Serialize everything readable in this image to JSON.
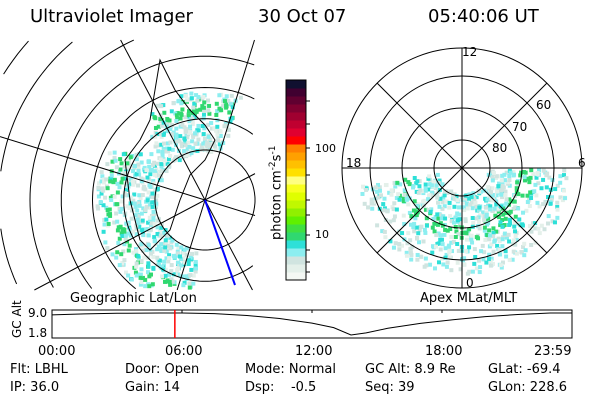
{
  "header": {
    "instrument": "Ultraviolet Imager",
    "date": "30 Oct 07",
    "time": "05:40:06 UT"
  },
  "left_panel": {
    "label": "Geographic Lat/Lon"
  },
  "right_panel": {
    "label": "Apex MLat/MLT",
    "mlt_labels": [
      "12",
      "18",
      "6",
      "0"
    ],
    "lat_labels": [
      "60",
      "70",
      "80"
    ]
  },
  "colorbar": {
    "unit": "photon cm",
    "exp1": "-2",
    "s": "s",
    "exp2": "-1",
    "ticks": [
      "100",
      "10"
    ],
    "colors": [
      "#f4f8f4",
      "#e4f0ea",
      "#d0e4e0",
      "#8ceef0",
      "#2ee0d8",
      "#30d870",
      "#40e040",
      "#60f000",
      "#90f000",
      "#c0f800",
      "#e0ff00",
      "#f8ff20",
      "#ffff80",
      "#ffe000",
      "#ffc000",
      "#ffa000",
      "#ff8000",
      "#ff0000",
      "#e00030",
      "#c00030",
      "#a00030",
      "#800030",
      "#600030",
      "#400030",
      "#101030"
    ]
  },
  "chart_data": {
    "type": "line",
    "ylabel": "GC Alt",
    "yticks": [
      "9.0",
      "1.8"
    ],
    "ylim": [
      1.8,
      9.0
    ],
    "xticks": [
      "00:00",
      "06:00",
      "12:00",
      "18:00",
      "23:59"
    ],
    "xlim": [
      0,
      24
    ],
    "x": [
      0,
      1.5,
      3,
      5,
      6,
      7.5,
      9,
      10.5,
      12,
      13,
      13.8,
      14.5,
      15.5,
      17,
      18.5,
      20,
      21.5,
      23,
      24
    ],
    "y": [
      8.4,
      8.7,
      8.9,
      9.0,
      9.0,
      8.8,
      8.2,
      7.2,
      5.7,
      4.2,
      1.8,
      2.5,
      4.0,
      5.6,
      6.8,
      7.8,
      8.5,
      9.0,
      9.0
    ],
    "marker_time": 5.67,
    "line_color": "#000000",
    "marker_color": "#ff0000"
  },
  "status": [
    [
      "Flt: LBHL",
      "IP: 36.0"
    ],
    [
      "Door: Open",
      "Gain: 14"
    ],
    [
      "Mode: Normal",
      "Dsp:    -0.5"
    ],
    [
      "GC Alt: 8.9 Re",
      "Seq: 39"
    ],
    [
      "GLat: -69.4",
      "GLon: 228.6"
    ]
  ]
}
